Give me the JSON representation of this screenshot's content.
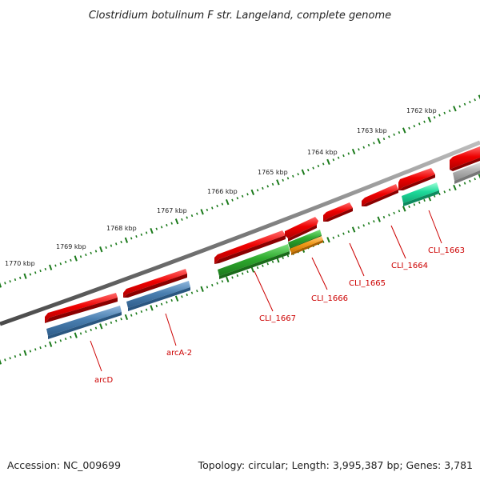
{
  "title": "Clostridium botulinum F str. Langeland, complete genome",
  "footer": {
    "accession": "Accession: NC_009699",
    "summary": "Topology: circular; Length: 3,995,387 bp; Genes: 3,781"
  },
  "colors": {
    "backbone": "#7a7a7a",
    "tick": "#1b7a1b",
    "label": "#cc0000",
    "red_gene": "#e80000",
    "blue_gene": "#4a7fb0",
    "green_gene": "#2eaa2e",
    "orange_gene": "#f29a1a",
    "teal_gene": "#1ed99a",
    "grey_gene": "#b0b0b0"
  },
  "scale": {
    "unit": "kbp",
    "ticks": [
      {
        "label": "1762 kbp"
      },
      {
        "label": "1763 kbp"
      },
      {
        "label": "1764 kbp"
      },
      {
        "label": "1765 kbp"
      },
      {
        "label": "1766 kbp"
      },
      {
        "label": "1767 kbp"
      },
      {
        "label": "1768 kbp"
      },
      {
        "label": "1769 kbp"
      },
      {
        "label": "1770 kbp"
      }
    ]
  },
  "gene_labels": [
    {
      "label": "arcD"
    },
    {
      "label": "arcA-2"
    },
    {
      "label": "CLI_1667"
    },
    {
      "label": "CLI_1666"
    },
    {
      "label": "CLI_1665"
    },
    {
      "label": "CLI_1664"
    },
    {
      "label": "CLI_1663"
    }
  ]
}
